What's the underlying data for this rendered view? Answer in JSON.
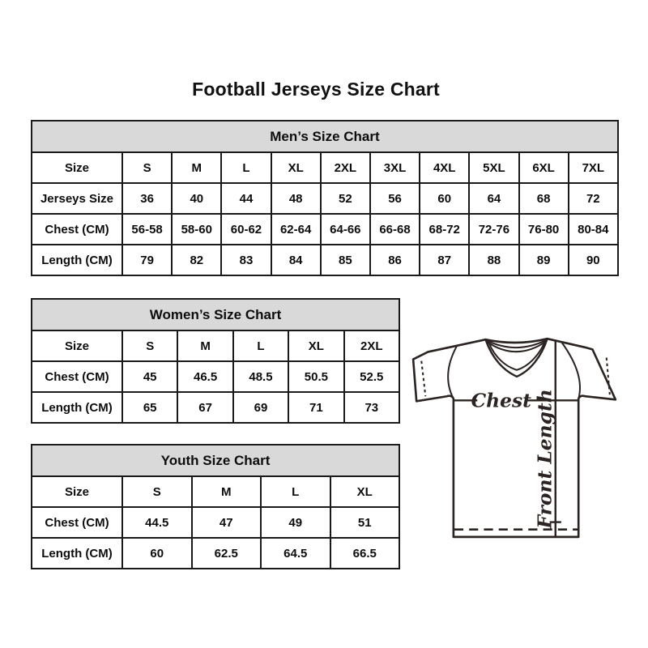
{
  "page": {
    "title": "Football Jerseys Size Chart"
  },
  "colors": {
    "background": "#ffffff",
    "table_header_bg": "#d9d9d9",
    "table_border": "#1a1a1a",
    "text": "#0d0d0d",
    "diagram_stroke": "#2b2422"
  },
  "tables": [
    {
      "id": "mens",
      "title": "Men’s Size Chart",
      "rows": [
        [
          "Size",
          "S",
          "M",
          "L",
          "XL",
          "2XL",
          "3XL",
          "4XL",
          "5XL",
          "6XL",
          "7XL"
        ],
        [
          "Jerseys Size",
          "36",
          "40",
          "44",
          "48",
          "52",
          "56",
          "60",
          "64",
          "68",
          "72"
        ],
        [
          "Chest (CM)",
          "56-58",
          "58-60",
          "60-62",
          "62-64",
          "64-66",
          "66-68",
          "68-72",
          "72-76",
          "76-80",
          "80-84"
        ],
        [
          "Length (CM)",
          "79",
          "82",
          "83",
          "84",
          "85",
          "86",
          "87",
          "88",
          "89",
          "90"
        ]
      ]
    },
    {
      "id": "womens",
      "title": "Women’s Size Chart",
      "rows": [
        [
          "Size",
          "S",
          "M",
          "L",
          "XL",
          "2XL"
        ],
        [
          "Chest (CM)",
          "45",
          "46.5",
          "48.5",
          "50.5",
          "52.5"
        ],
        [
          "Length (CM)",
          "65",
          "67",
          "69",
          "71",
          "73"
        ]
      ]
    },
    {
      "id": "youth",
      "title": "Youth Size Chart",
      "rows": [
        [
          "Size",
          "S",
          "M",
          "L",
          "XL"
        ],
        [
          "Chest (CM)",
          "44.5",
          "47",
          "49",
          "51"
        ],
        [
          "Length (CM)",
          "60",
          "62.5",
          "64.5",
          "66.5"
        ]
      ]
    }
  ],
  "diagram": {
    "chest_label": "Chest",
    "front_length_label": "Front Length"
  }
}
